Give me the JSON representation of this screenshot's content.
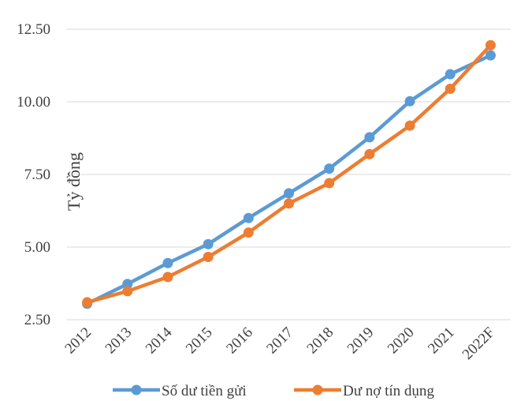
{
  "chart_data": {
    "type": "line",
    "title": "",
    "xlabel": "",
    "ylabel": "Tỷ đồng",
    "ylim": [
      2.5,
      12.5
    ],
    "yticks": [
      "2.50",
      "5.00",
      "7.50",
      "10.00",
      "12.50"
    ],
    "ytick_values": [
      2.5,
      5.0,
      7.5,
      10.0,
      12.5
    ],
    "categories": [
      "2012",
      "2013",
      "2014",
      "2015",
      "2016",
      "2017",
      "2018",
      "2019",
      "2020",
      "2021",
      "2022F"
    ],
    "grid": true,
    "legend_position": "bottom",
    "series": [
      {
        "name": "Số dư tiền gửi",
        "color": "#5b9bd5",
        "values": [
          3.05,
          3.73,
          4.45,
          5.1,
          6.0,
          6.85,
          7.7,
          8.78,
          10.02,
          10.95,
          11.6
        ]
      },
      {
        "name": "Dư nợ tín dụng",
        "color": "#ed7d31",
        "values": [
          3.1,
          3.48,
          3.97,
          4.66,
          5.5,
          6.5,
          7.2,
          8.2,
          9.18,
          10.45,
          11.95
        ]
      }
    ]
  }
}
